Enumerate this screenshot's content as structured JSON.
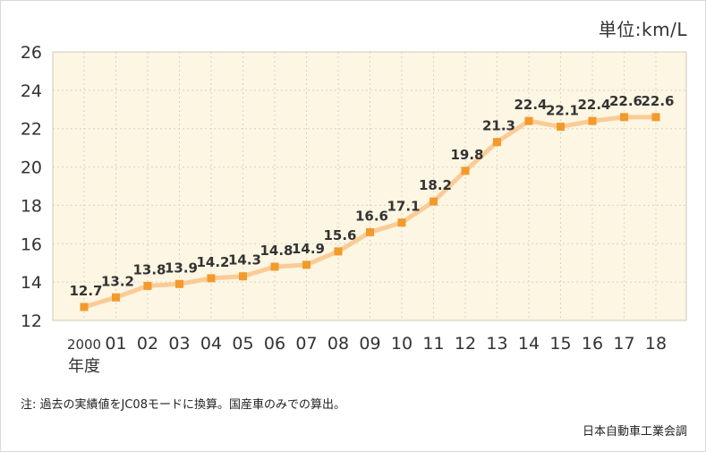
{
  "unit_label": "単位:km/L",
  "note": "注: 過去の実績値をJC08モードに換算。国産車のみでの算出。",
  "source": "日本自動車工業会調",
  "colors": {
    "plot_bg": "#fcf6e3",
    "grid": "#d9d3c4",
    "line": "#fbcb97",
    "marker": "#f39a2b",
    "text": "#333333"
  },
  "chart_data": {
    "type": "line",
    "title": "",
    "xlabel": "年度",
    "ylabel": "",
    "unit": "単位:km/L",
    "ylim": [
      12,
      26
    ],
    "yticks": [
      12,
      14,
      16,
      18,
      20,
      22,
      24,
      26
    ],
    "grid": true,
    "categories": [
      "2000",
      "01",
      "02",
      "03",
      "04",
      "05",
      "06",
      "07",
      "08",
      "09",
      "10",
      "11",
      "12",
      "13",
      "14",
      "15",
      "16",
      "17",
      "18"
    ],
    "series": [
      {
        "values": [
          12.7,
          13.2,
          13.8,
          13.9,
          14.2,
          14.3,
          14.8,
          14.9,
          15.6,
          16.6,
          17.1,
          18.2,
          19.8,
          21.3,
          22.4,
          22.1,
          22.4,
          22.6,
          22.6
        ],
        "data_labels": [
          "12.7",
          "13.2",
          "13.8",
          "13.9",
          "14.2",
          "14.3",
          "14.8",
          "14.9",
          "15.6",
          "16.6",
          "17.1",
          "18.2",
          "19.8",
          "21.3",
          "22.4",
          "22.1",
          "22.4",
          "22.6",
          "22.6"
        ]
      }
    ]
  }
}
